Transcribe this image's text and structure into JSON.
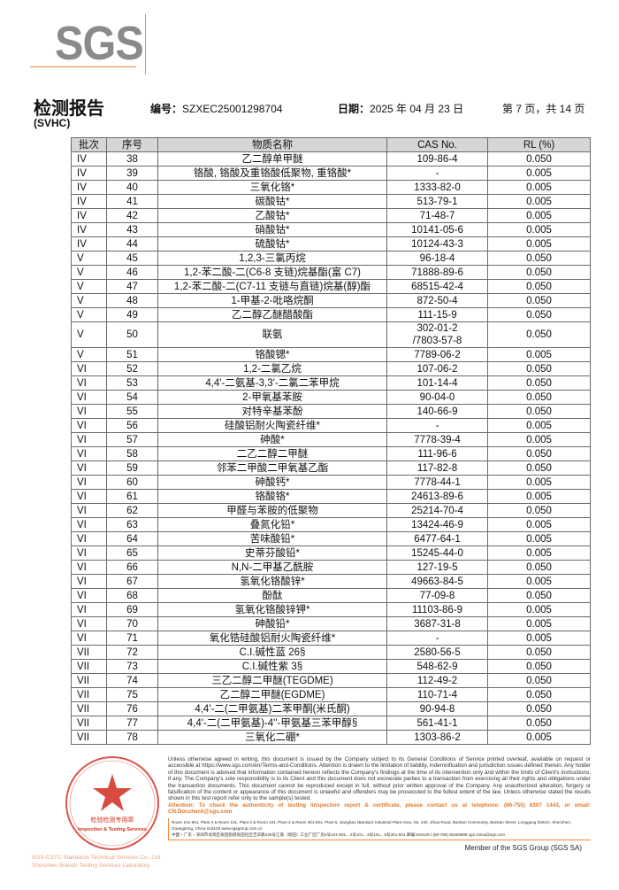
{
  "logo": {
    "text": "SGS",
    "color": "#8a8a8a",
    "accent": "#f08a3c"
  },
  "header": {
    "title": "检测报告",
    "subtitle": "(SVHC)",
    "number_label": "编号：",
    "number": "SZXEC25001298704",
    "date_label": "日期：",
    "date": "2025 年 04 月 23 日",
    "page": "第 7 页，共 14 页"
  },
  "table": {
    "columns": [
      "批次",
      "序号",
      "物质名称",
      "CAS No.",
      "RL (%)"
    ],
    "rows": [
      [
        "IV",
        "38",
        "乙二醇单甲醚",
        "109-86-4",
        "0.050"
      ],
      [
        "IV",
        "39",
        "铬酸, 铬酸及重铬酸低聚物, 重铬酸*",
        "-",
        "0.005"
      ],
      [
        "IV",
        "40",
        "三氧化铬*",
        "1333-82-0",
        "0.005"
      ],
      [
        "IV",
        "41",
        "碳酸钴*",
        "513-79-1",
        "0.005"
      ],
      [
        "IV",
        "42",
        "乙酸钴*",
        "71-48-7",
        "0.005"
      ],
      [
        "IV",
        "43",
        "硝酸钴*",
        "10141-05-6",
        "0.005"
      ],
      [
        "IV",
        "44",
        "硫酸钴*",
        "10124-43-3",
        "0.005"
      ],
      [
        "V",
        "45",
        "1,2,3-三氯丙烷",
        "96-18-4",
        "0.050"
      ],
      [
        "V",
        "46",
        "1,2-苯二酸-二(C6-8 支链)烷基酯(富 C7)",
        "71888-89-6",
        "0.050"
      ],
      [
        "V",
        "47",
        "1,2-苯二酸-二(C7-11 支链与直链)烷基(醇)酯",
        "68515-42-4",
        "0.050"
      ],
      [
        "V",
        "48",
        "1-甲基-2-吡咯烷酮",
        "872-50-4",
        "0.050"
      ],
      [
        "V",
        "49",
        "乙二醇乙醚醋酸酯",
        "111-15-9",
        "0.050"
      ],
      [
        "V",
        "50",
        "联氨",
        "302-01-2\n/7803-57-8",
        "0.050"
      ],
      [
        "V",
        "51",
        "铬酸锶*",
        "7789-06-2",
        "0.005"
      ],
      [
        "VI",
        "52",
        "1,2-二氯乙烷",
        "107-06-2",
        "0.050"
      ],
      [
        "VI",
        "53",
        "4,4'-二氨基-3,3'-二氯二苯甲烷",
        "101-14-4",
        "0.050"
      ],
      [
        "VI",
        "54",
        "2-甲氧基苯胺",
        "90-04-0",
        "0.050"
      ],
      [
        "VI",
        "55",
        "对特辛基苯酚",
        "140-66-9",
        "0.050"
      ],
      [
        "VI",
        "56",
        "硅酸铝耐火陶瓷纤维*",
        "-",
        "0.005"
      ],
      [
        "VI",
        "57",
        "砷酸*",
        "7778-39-4",
        "0.005"
      ],
      [
        "VI",
        "58",
        "二乙二醇二甲醚",
        "111-96-6",
        "0.050"
      ],
      [
        "VI",
        "59",
        "邻苯二甲酸二甲氧基乙酯",
        "117-82-8",
        "0.050"
      ],
      [
        "VI",
        "60",
        "砷酸钙*",
        "7778-44-1",
        "0.005"
      ],
      [
        "VI",
        "61",
        "铬酸铬*",
        "24613-89-6",
        "0.005"
      ],
      [
        "VI",
        "62",
        "甲醛与苯胺的低聚物",
        "25214-70-4",
        "0.050"
      ],
      [
        "VI",
        "63",
        "叠氮化铅*",
        "13424-46-9",
        "0.005"
      ],
      [
        "VI",
        "64",
        "苦味酸铅*",
        "6477-64-1",
        "0.005"
      ],
      [
        "VI",
        "65",
        "史蒂芬酸铅*",
        "15245-44-0",
        "0.005"
      ],
      [
        "VI",
        "66",
        "N,N-二甲基乙酰胺",
        "127-19-5",
        "0.050"
      ],
      [
        "VI",
        "67",
        "氢氧化铬酸锌*",
        "49663-84-5",
        "0.005"
      ],
      [
        "VI",
        "68",
        "酚酞",
        "77-09-8",
        "0.050"
      ],
      [
        "VI",
        "69",
        "氢氧化铬酸锌钾*",
        "11103-86-9",
        "0.005"
      ],
      [
        "VI",
        "70",
        "砷酸铅*",
        "3687-31-8",
        "0.005"
      ],
      [
        "VI",
        "71",
        "氧化锆硅酸铝耐火陶瓷纤维*",
        "-",
        "0.005"
      ],
      [
        "VII",
        "72",
        "C.I.碱性蓝 26§",
        "2580-56-5",
        "0.050"
      ],
      [
        "VII",
        "73",
        "C.I.碱性紫 3§",
        "548-62-9",
        "0.050"
      ],
      [
        "VII",
        "74",
        "三乙二醇二甲醚(TEGDME)",
        "112-49-2",
        "0.050"
      ],
      [
        "VII",
        "75",
        "乙二醇二甲醚(EGDME)",
        "110-71-4",
        "0.050"
      ],
      [
        "VII",
        "76",
        "4,4'-二(二甲氨基)二苯甲酮(米氏酮)",
        "90-94-8",
        "0.050"
      ],
      [
        "VII",
        "77",
        "4,4'-二(二甲氨基)-4''-甲氨基三苯甲醇§",
        "561-41-1",
        "0.050"
      ],
      [
        "VII",
        "78",
        "三氧化二硼*",
        "1303-86-2",
        "0.005"
      ]
    ]
  },
  "footer": {
    "disclaimer": "Unless otherwise agreed in writing, this document is issued by the Company subject to its General Conditions of Service printed overleaf, available on request or accessible at https://www.sgs.com/en/Terms-and-Conditions. Attention is drawn to the limitation of liability, indemnification and jurisdiction issues defined therein. Any holder of this document is advised that information contained hereon reflects the Company's findings at the time of its intervention only and within the limits of Client's instructions, if any. The Company's sole responsibility is to its Client and this document does not exonerate parties to a transaction from exercising all their rights and obligations under the transaction documents. This document cannot be reproduced except in full, without prior written approval of the Company. Any unauthorized alteration, forgery or falsification of the content or appearance of this document is unlawful and offenders may be prosecuted to the fullest extent of the law. Unless otherwise stated the results shown in this test report refer only to the sample(s) tested.",
    "attention": "Attention: To check the authenticity of testing /inspection report & certificate, please contact us at telephone: (86-755) 8307 1443, or email: CN.Doccheck@sgs.com",
    "address_en": "Room 101-901, Plant 4 & Room 101, Plant 2 & Room 101, Plant 3 & Room 301-501, Plant 5, Jiangbao (Bantian) Industrial Plant Area, No. 430, Jihua Road, Bantian Community, Bantian Street, Longgang District, Shenzhen, Guangdong, China 518129   www.sgsgroup.com.cn",
    "address_cn": "中国・广东・深圳市龙岗区坂田街道坂田社区吉华路430号江葆（坂田）工业厂区厂房4号101-901、2号101、3号101、5号301-501 邮编:518129   t (86-755) 25328888   sgs.china@sgs.com",
    "member": "Member of the SGS Group (SGS SA)",
    "accent": "#e07a2a"
  },
  "stamp": {
    "text": "通标标准技术服务有限公司深圳分公司 检验检测专用章 Inspection & Testing Services",
    "company": "SGS-CSTC Standards Technical Services Co., Ltd.",
    "branch": "Shenzhen Branch Testing Services Laboratory",
    "color": "#d22a1e"
  }
}
